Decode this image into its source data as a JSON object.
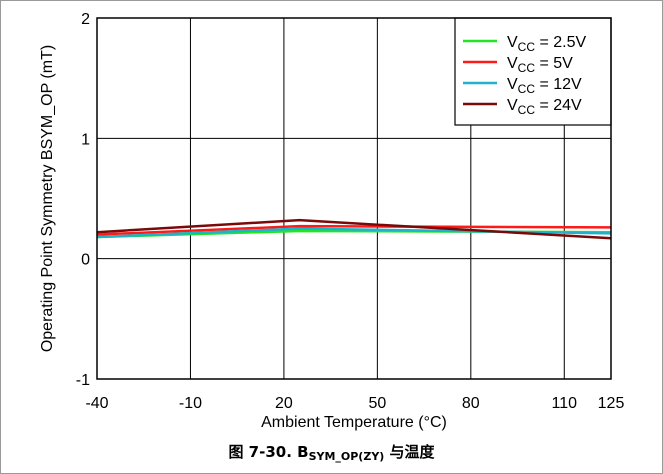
{
  "chart_data": {
    "type": "line",
    "title": "",
    "caption": {
      "prefix": "图 7-30. B",
      "subscript": "SYM_OP(ZY)",
      "suffix": " 与温度"
    },
    "xlabel": "Ambient Temperature (°C)",
    "ylabel": "Operating Point Symmetry BSYM_OP (mT)",
    "xlim": [
      -40,
      125
    ],
    "ylim": [
      -1,
      2
    ],
    "xticks": [
      -40,
      -10,
      20,
      50,
      80,
      110,
      125
    ],
    "xtick_labels": [
      "-40",
      "-10",
      "20",
      "50",
      "80",
      "110",
      "125"
    ],
    "yticks": [
      -1,
      0,
      1,
      2
    ],
    "ytick_labels": [
      "-1",
      "0",
      "1",
      "2"
    ],
    "grid": true,
    "legend_position": "top-right",
    "x": [
      -40,
      25,
      125
    ],
    "series": [
      {
        "name": "VCC = 2.5V",
        "legend_main": "V",
        "legend_sub": "CC",
        "legend_rest": " = 2.5V",
        "color": "#22e622",
        "values": [
          0.18,
          0.23,
          0.22
        ]
      },
      {
        "name": "VCC = 5V",
        "legend_main": "V",
        "legend_sub": "CC",
        "legend_rest": " = 5V",
        "color": "#ff1a1a",
        "values": [
          0.2,
          0.27,
          0.26
        ]
      },
      {
        "name": "VCC = 12V",
        "legend_main": "V",
        "legend_sub": "CC",
        "legend_rest": " = 12V",
        "color": "#1fb2c8",
        "values": [
          0.18,
          0.25,
          0.21
        ]
      },
      {
        "name": "VCC = 24V",
        "legend_main": "V",
        "legend_sub": "CC",
        "legend_rest": " = 24V",
        "color": "#7a0a0a",
        "values": [
          0.22,
          0.32,
          0.17
        ]
      }
    ]
  }
}
